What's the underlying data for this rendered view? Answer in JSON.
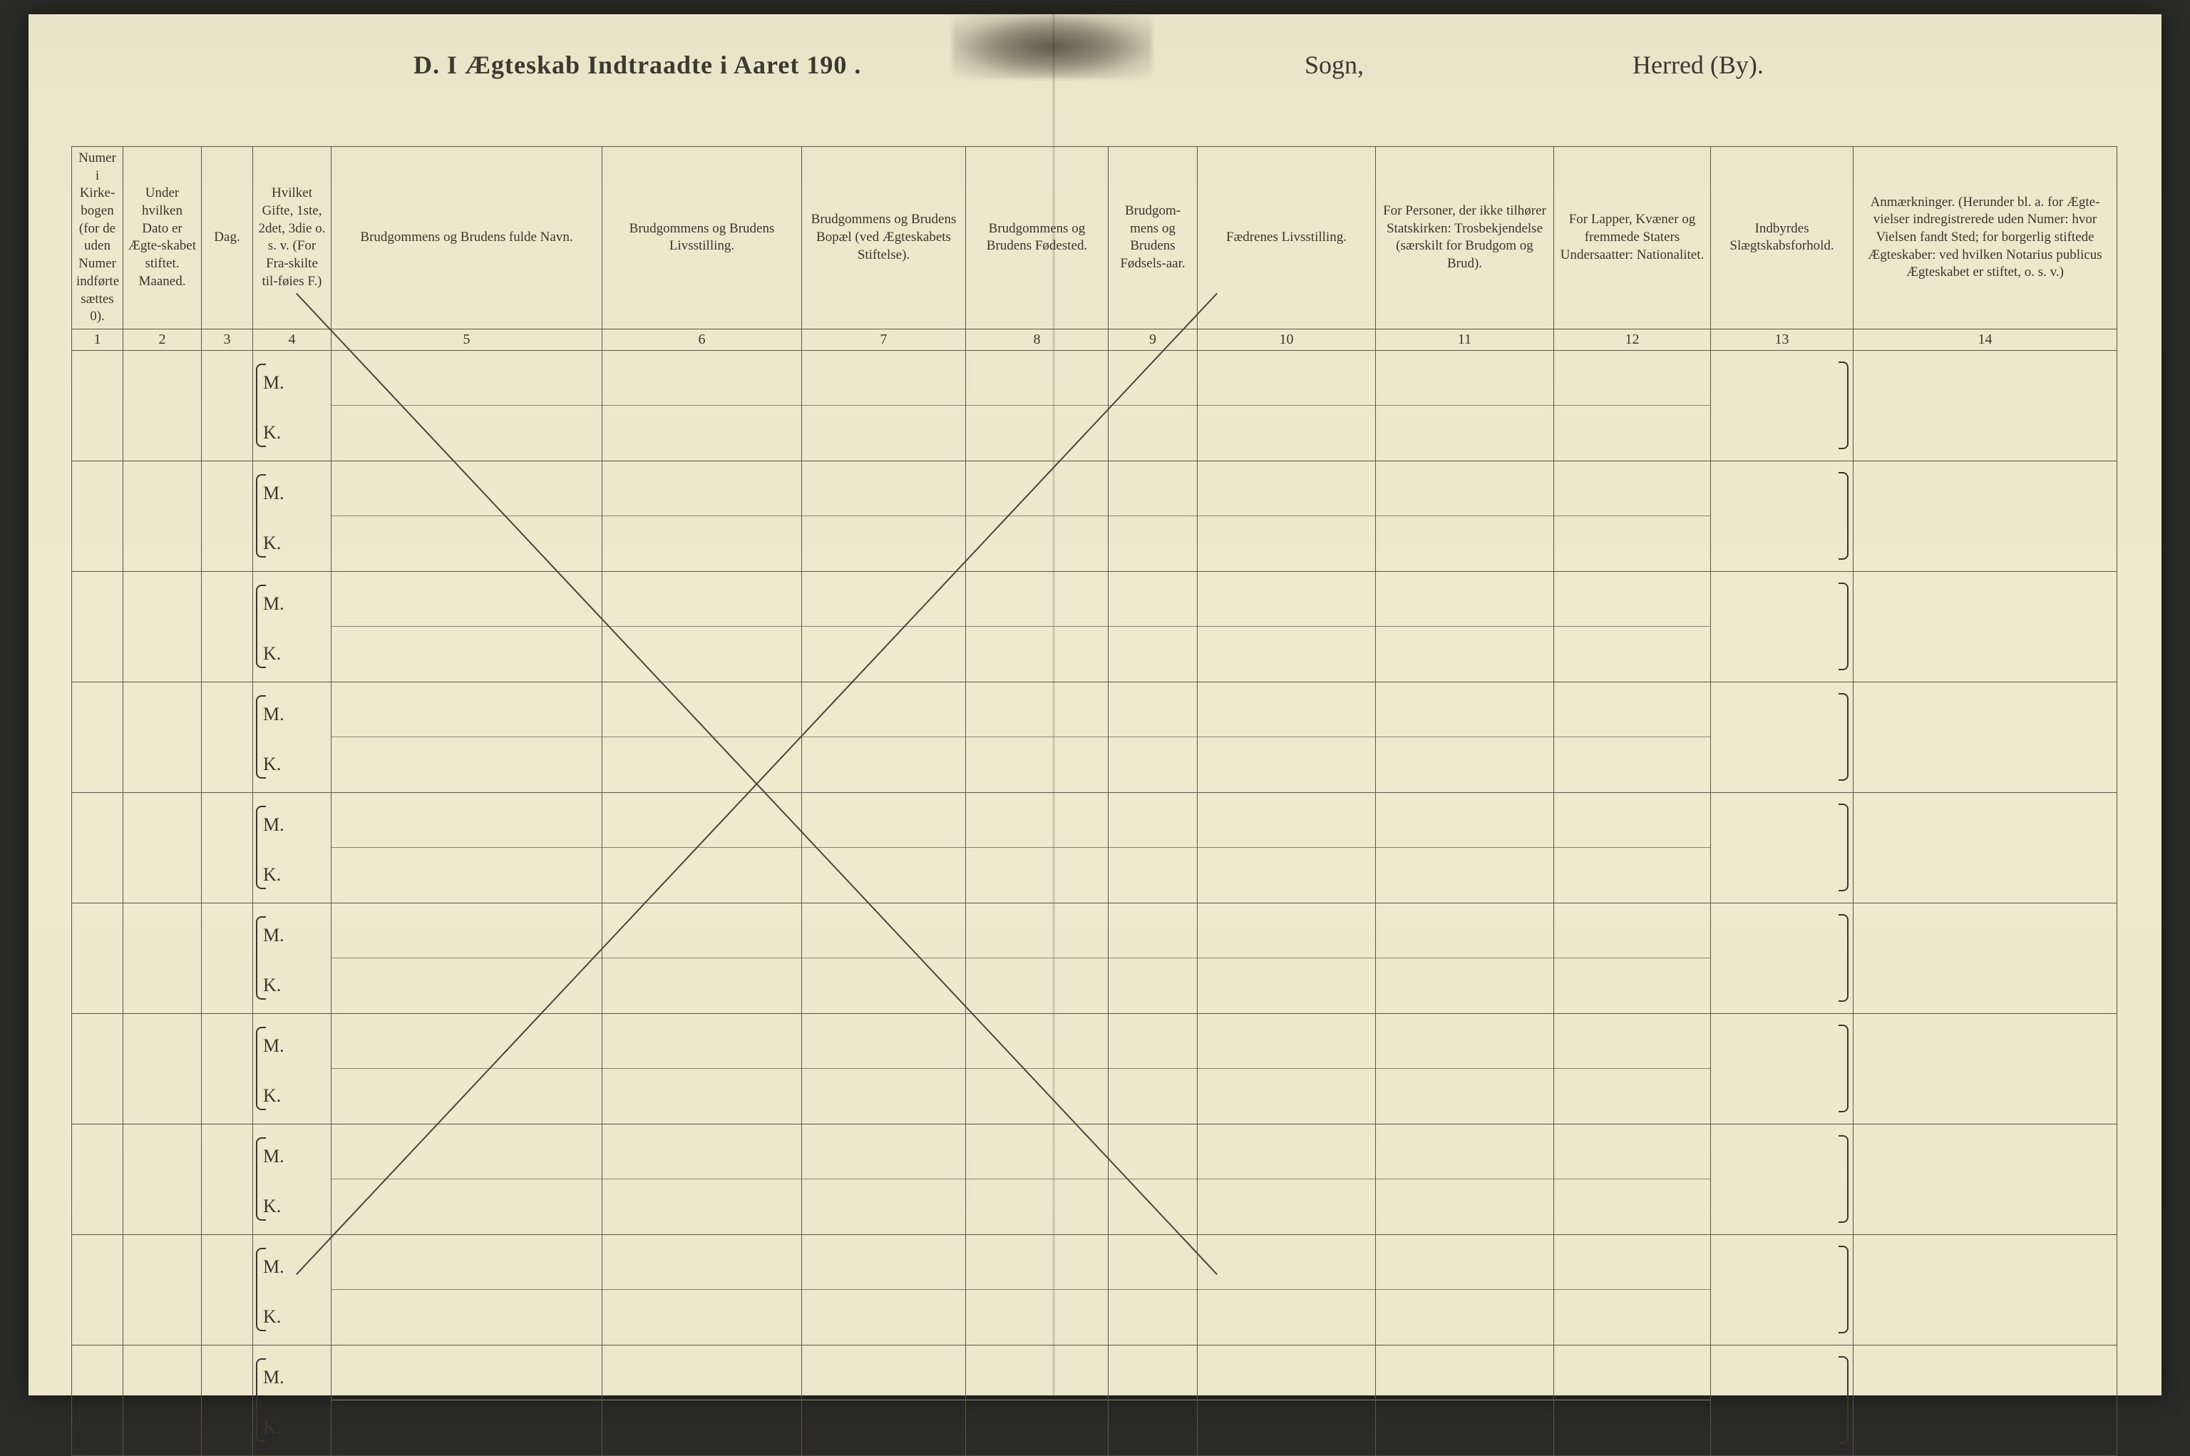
{
  "title": {
    "left": "D.  I Ægteskab Indtraadte i Aaret 190  .",
    "mid": "Sogn,",
    "right": "Herred (By)."
  },
  "columns": [
    {
      "num": "1",
      "header": "Numer i Kirke-bogen (for de uden Numer indførte sættes 0).",
      "width_class": "col1"
    },
    {
      "num": "2",
      "header": "Under hvilken Dato er Ægte-skabet stiftet.\nMaaned.",
      "width_class": "col2"
    },
    {
      "num": "3",
      "header": "Dag.",
      "width_class": "col3"
    },
    {
      "num": "4",
      "header": "Hvilket Gifte, 1ste, 2det, 3die o. s. v. (For Fra-skilte til-føies F.)",
      "width_class": "col4"
    },
    {
      "num": "5",
      "header": "Brudgommens og Brudens fulde Navn.",
      "width_class": "col5"
    },
    {
      "num": "6",
      "header": "Brudgommens og Brudens Livsstilling.",
      "width_class": "col6"
    },
    {
      "num": "7",
      "header": "Brudgommens og Brudens Bopæl (ved Ægteskabets Stiftelse).",
      "width_class": "col7"
    },
    {
      "num": "8",
      "header": "Brudgommens og Brudens Fødested.",
      "width_class": "col8"
    },
    {
      "num": "9",
      "header": "Brudgom-mens og Brudens Fødsels-aar.",
      "width_class": "col9"
    },
    {
      "num": "10",
      "header": "Fædrenes Livsstilling.",
      "width_class": "col10"
    },
    {
      "num": "11",
      "header": "For Personer, der ikke tilhører Statskirken: Trosbekjendelse (særskilt for Brudgom og Brud).",
      "width_class": "col11"
    },
    {
      "num": "12",
      "header": "For Lapper, Kvæner og fremmede Staters Undersaatter: Nationalitet.",
      "width_class": "col12"
    },
    {
      "num": "13",
      "header": "Indbyrdes Slægtskabsforhold.",
      "width_class": "col13"
    },
    {
      "num": "14",
      "header": "Anmærkninger. (Herunder bl. a. for Ægte-vielser indregistrerede uden Numer: hvor Vielsen fandt Sted; for borgerlig stiftede Ægteskaber: ved hvilken Notarius publicus Ægteskabet er stiftet, o. s. v.)",
      "width_class": "col14"
    }
  ],
  "row_labels": {
    "m": "M.",
    "k": "K."
  },
  "num_data_rows": 10,
  "left_brace_column_index": 3,
  "right_brace_column_index": 12,
  "split_columns": [
    4,
    5,
    6,
    7,
    8,
    9,
    10,
    11
  ],
  "cross_out": {
    "stroke": "#4a4638",
    "stroke_width": 2,
    "x1_pct": 11,
    "y1_pct": 12,
    "x2_pct": 56,
    "y2_pct": 92,
    "x3_pct": 11,
    "y3_pct": 92,
    "x4_pct": 56,
    "y4_pct": 12
  },
  "colors": {
    "page_bg": "#eeeace",
    "border": "#5a5648",
    "text": "#3a3628"
  }
}
